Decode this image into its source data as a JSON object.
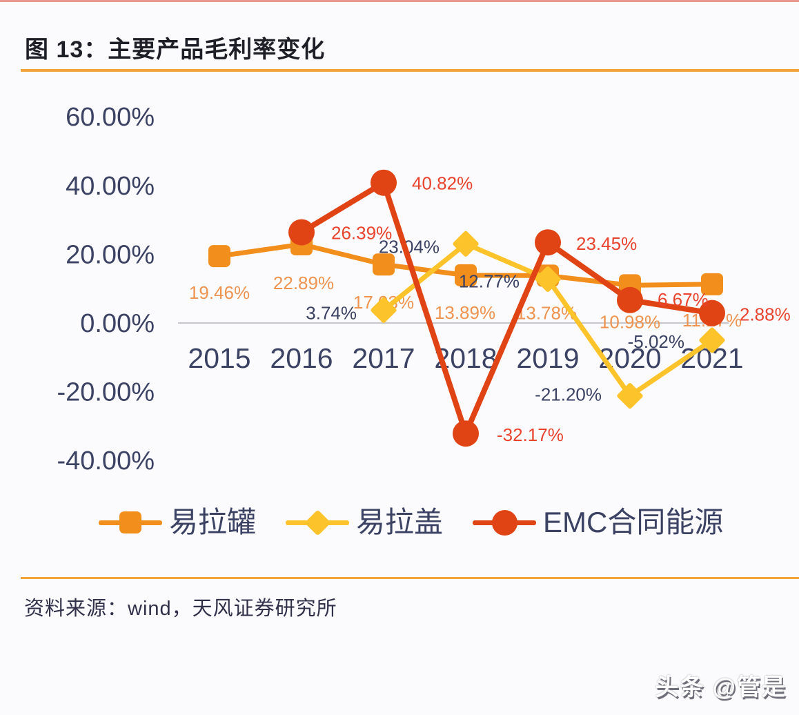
{
  "header": {
    "title": "图 13：主要产品毛利率变化"
  },
  "chart_data": {
    "type": "line",
    "title": "主要产品毛利率变化",
    "x_labels": [
      "2015",
      "2016",
      "2017",
      "2018",
      "2019",
      "2020",
      "2021"
    ],
    "y_ticks": {
      "labels": [
        "60.00%",
        "40.00%",
        "20.00%",
        "0.00%",
        "-20.00%",
        "-40.00%"
      ],
      "values": [
        60,
        40,
        20,
        0,
        -20,
        -40
      ]
    },
    "ylim": [
      -40,
      60
    ],
    "unit": "percent",
    "grid": "zero-line-only",
    "grid_color": "#C6C6CB",
    "legend_position": "bottom",
    "series": [
      {
        "name": "易拉罐",
        "key": "cans",
        "color": "#F28E1C",
        "label_color": "#EE9350",
        "marker": "square",
        "stroke_width": 7,
        "start_index": 0,
        "values": [
          19.46,
          22.89,
          17.03,
          13.89,
          13.78,
          10.98,
          11.27
        ],
        "labels": [
          "19.46%",
          "22.89%",
          "17.03%",
          "13.89%",
          "13.78%",
          "10.98%",
          "11.27%"
        ],
        "label_anchor": "middle",
        "label_offsets": [
          [
            0,
            62
          ],
          [
            3,
            65
          ],
          [
            0,
            64
          ],
          [
            -1,
            63
          ],
          [
            -2,
            63
          ],
          [
            0,
            62
          ],
          [
            0,
            61
          ]
        ]
      },
      {
        "name": "易拉盖",
        "key": "lids",
        "color": "#FCC32B",
        "label_color": "#3B4263",
        "marker": "diamond",
        "stroke_width": 7,
        "start_index": 2,
        "values": [
          3.74,
          23.04,
          12.77,
          -21.2,
          -5.02
        ],
        "labels": [
          "3.74%",
          "23.04%",
          "12.77%",
          "-21.20%",
          "-5.02%"
        ],
        "label_anchor": "end",
        "label_offsets": [
          [
            -39,
            13
          ],
          [
            -38,
            13
          ],
          [
            -41,
            12
          ],
          [
            -41,
            7
          ],
          [
            -40,
            11
          ]
        ]
      },
      {
        "name": "EMC合同能源",
        "key": "emc",
        "color": "#E04415",
        "label_color": "#E8432D",
        "marker": "circle",
        "stroke_width": 8,
        "start_index": 1,
        "values": [
          26.39,
          40.82,
          -32.17,
          23.45,
          6.67,
          2.88
        ],
        "labels": [
          "26.39%",
          "40.82%",
          "-32.17%",
          "23.45%",
          "6.67%",
          "2.88%"
        ],
        "label_anchor": "start",
        "label_offsets": [
          [
            43,
            10
          ],
          [
            41,
            10
          ],
          [
            45,
            11
          ],
          [
            41,
            11
          ],
          [
            40,
            8
          ],
          [
            40,
            11
          ]
        ]
      }
    ]
  },
  "source": {
    "text": "资料来源：wind，天风证券研究所"
  },
  "watermark": {
    "text": "头条 @管是"
  },
  "colors": {
    "accent_rule": "#F2A33C",
    "axis_text": "#3B4263",
    "title_text": "#1E1F26",
    "background": "#FBFBFD"
  }
}
